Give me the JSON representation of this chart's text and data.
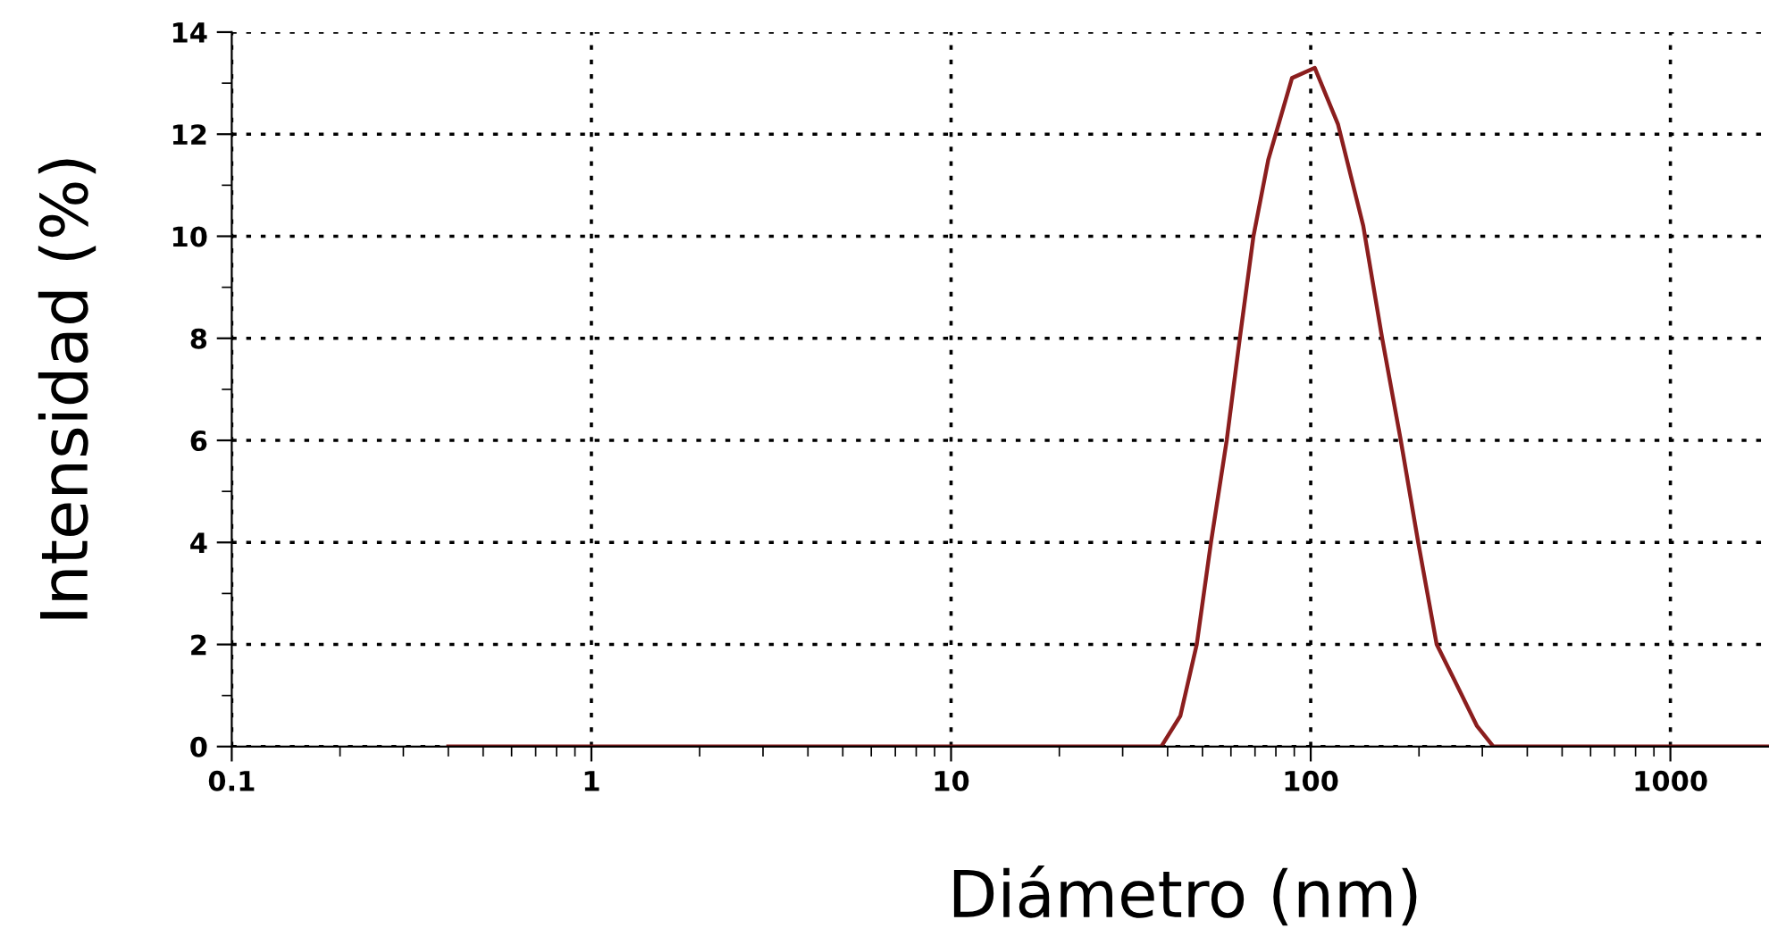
{
  "chart_data": {
    "type": "line",
    "xlabel": "Diámetro (nm)",
    "ylabel": "Intensidad (%)",
    "log": "x",
    "grid": true,
    "marker": "none",
    "line_style": "solid",
    "series": [
      {
        "color": "#8b1e1e",
        "x": [
          0.4,
          38.4,
          43.4,
          48.2,
          52.8,
          58.4,
          63.5,
          69.3,
          76.2,
          88.7,
          102.6,
          119,
          140,
          158,
          178,
          199,
          224,
          251,
          290,
          322,
          1880
        ],
        "values": [
          0,
          0,
          0.6,
          2,
          4,
          6,
          8,
          10,
          11.5,
          13.1,
          13.3,
          12.2,
          10.2,
          8,
          6,
          4,
          2,
          1.3,
          0.4,
          0,
          0
        ]
      }
    ],
    "xlim": [
      0.1,
      1880
    ],
    "ylim": [
      0,
      14
    ],
    "xticks": [
      0.1,
      1,
      10,
      100,
      1000
    ],
    "yticks": [
      0,
      2,
      4,
      6,
      8,
      10,
      12,
      14
    ]
  }
}
